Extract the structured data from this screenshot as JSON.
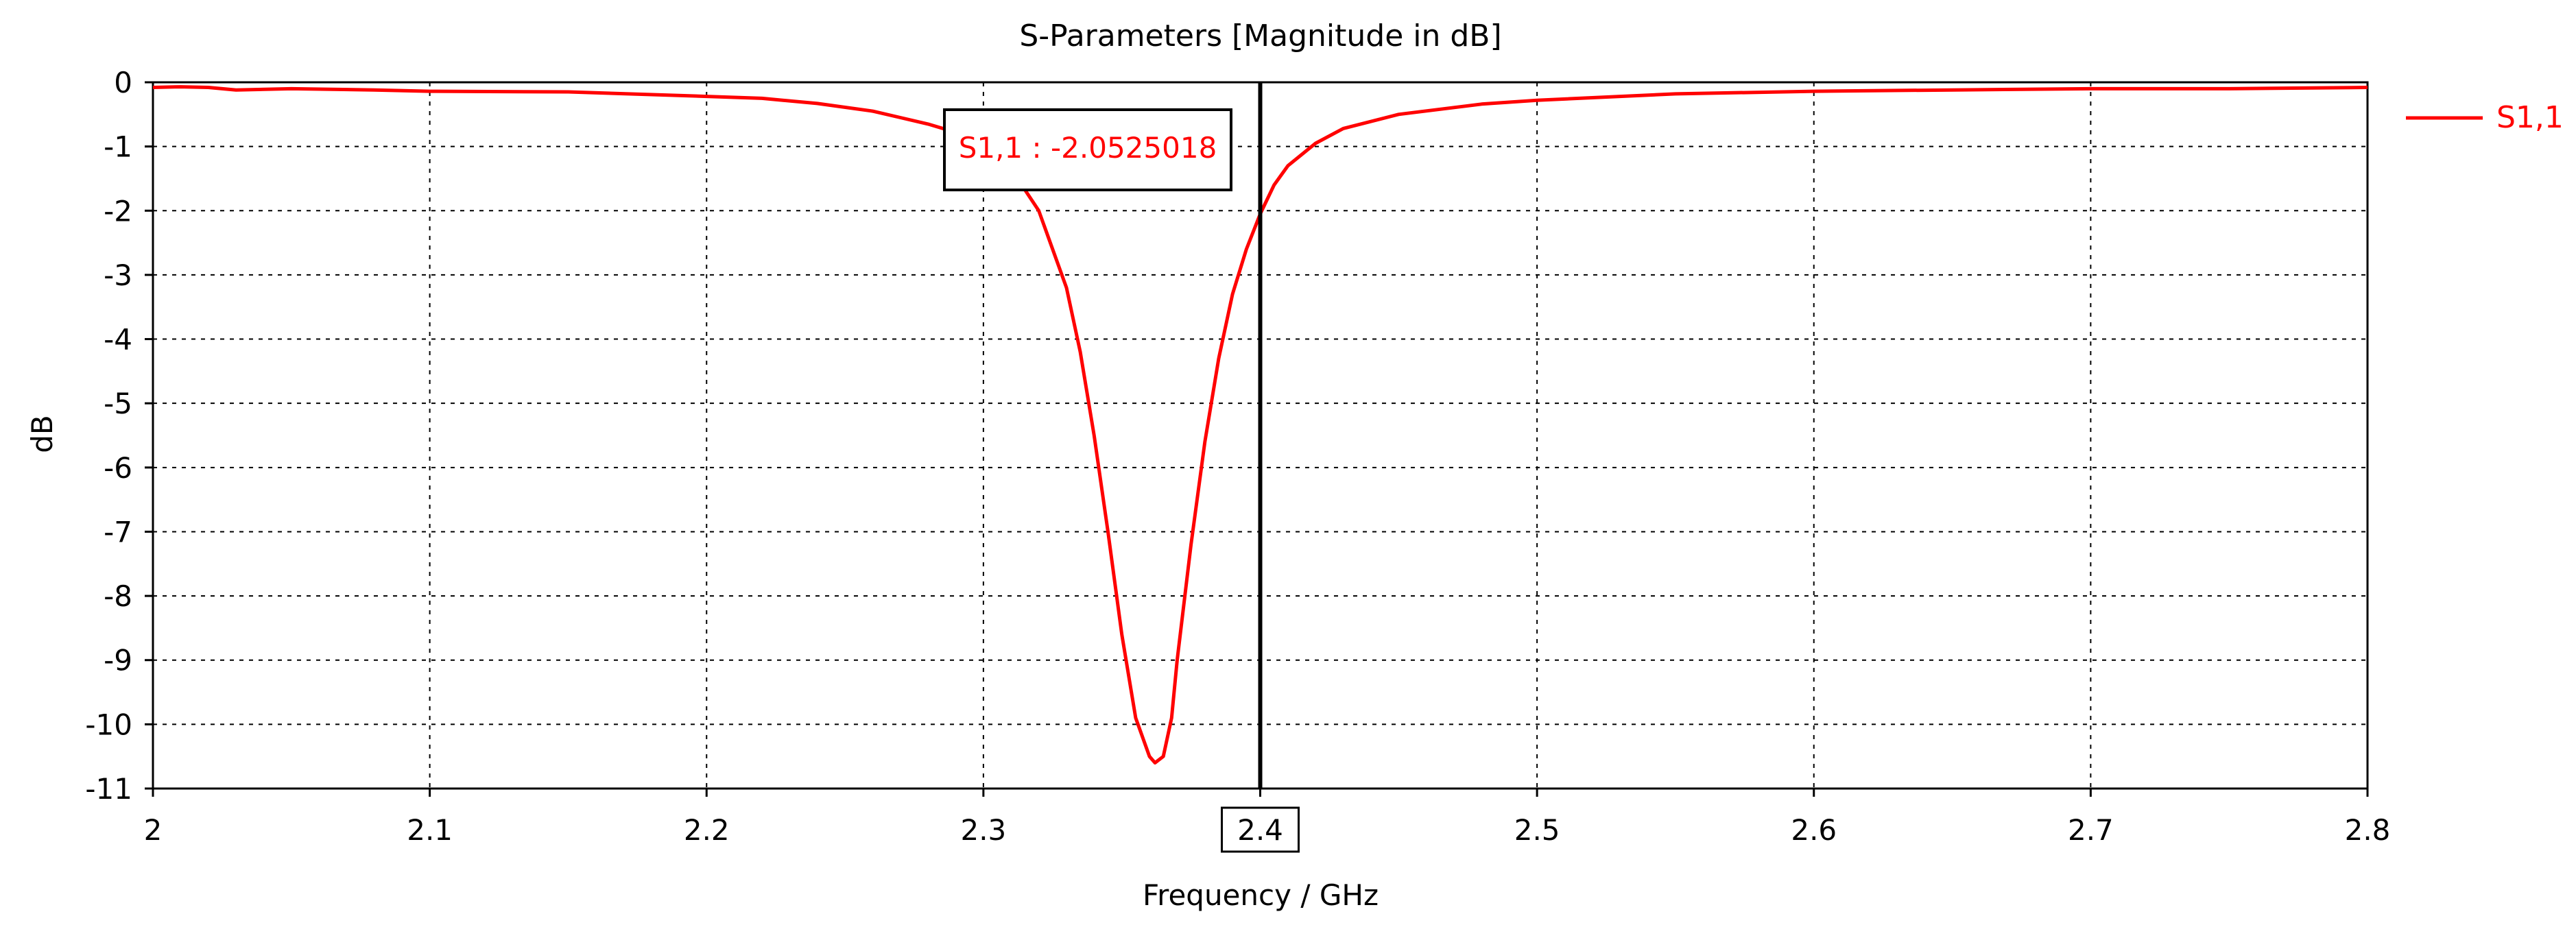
{
  "chart_data": {
    "type": "line",
    "title": "S-Parameters [Magnitude in dB]",
    "xlabel": "Frequency / GHz",
    "ylabel": "dB",
    "xlim": [
      2.0,
      2.8
    ],
    "ylim": [
      -11,
      0
    ],
    "x_ticks": [
      "2",
      "2.1",
      "2.2",
      "2.3",
      "2.4",
      "2.5",
      "2.6",
      "2.7",
      "2.8"
    ],
    "y_ticks": [
      "0",
      "-1",
      "-2",
      "-3",
      "-4",
      "-5",
      "-6",
      "-7",
      "-8",
      "-9",
      "-10",
      "-11"
    ],
    "grid": true,
    "legend_position": "right",
    "series": [
      {
        "name": "S1,1",
        "color": "#ff0000",
        "x": [
          2.0,
          2.01,
          2.02,
          2.03,
          2.05,
          2.08,
          2.1,
          2.15,
          2.2,
          2.22,
          2.24,
          2.26,
          2.27,
          2.28,
          2.29,
          2.3,
          2.31,
          2.32,
          2.33,
          2.335,
          2.34,
          2.345,
          2.35,
          2.355,
          2.36,
          2.362,
          2.365,
          2.368,
          2.37,
          2.375,
          2.38,
          2.385,
          2.39,
          2.395,
          2.4,
          2.405,
          2.41,
          2.42,
          2.43,
          2.45,
          2.48,
          2.5,
          2.55,
          2.6,
          2.65,
          2.7,
          2.75,
          2.8
        ],
        "y": [
          -0.08,
          -0.07,
          -0.08,
          -0.12,
          -0.1,
          -0.12,
          -0.14,
          -0.15,
          -0.22,
          -0.25,
          -0.33,
          -0.45,
          -0.55,
          -0.65,
          -0.78,
          -0.95,
          -1.35,
          -2.0,
          -3.2,
          -4.2,
          -5.5,
          -7.0,
          -8.6,
          -9.9,
          -10.5,
          -10.6,
          -10.5,
          -9.9,
          -9.0,
          -7.2,
          -5.6,
          -4.3,
          -3.3,
          -2.6,
          -2.05,
          -1.6,
          -1.3,
          -0.95,
          -0.72,
          -0.5,
          -0.34,
          -0.28,
          -0.18,
          -0.14,
          -0.12,
          -0.1,
          -0.1,
          -0.08
        ]
      }
    ],
    "marker": {
      "x": 2.4,
      "label": "S1,1 : -2.0525018",
      "value": -2.0525018
    }
  }
}
